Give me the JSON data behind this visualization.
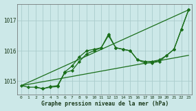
{
  "bg_color": "#cce8e8",
  "grid_color": "#aacccc",
  "line_color": "#1a6e1a",
  "marker_color": "#1a6e1a",
  "xlabel": "Graphe pression niveau de la mer (hPa)",
  "ylabel_ticks": [
    1015,
    1016,
    1017
  ],
  "xlim": [
    -0.5,
    23.5
  ],
  "ylim": [
    1014.55,
    1017.55
  ],
  "xticks": [
    0,
    1,
    2,
    3,
    4,
    5,
    6,
    7,
    8,
    9,
    10,
    11,
    12,
    13,
    14,
    15,
    16,
    17,
    18,
    19,
    20,
    21,
    22,
    23
  ],
  "series_diag1": {
    "x": [
      0,
      23
    ],
    "y": [
      1014.85,
      1017.35
    ]
  },
  "series_diag2": {
    "x": [
      0,
      23
    ],
    "y": [
      1014.85,
      1015.85
    ]
  },
  "series_main": {
    "x": [
      0,
      1,
      2,
      3,
      4,
      5,
      6,
      7,
      8,
      9,
      10,
      11,
      12,
      13,
      14,
      15,
      16,
      17,
      18,
      19,
      20,
      21,
      22,
      23
    ],
    "y": [
      1014.85,
      1014.8,
      1014.8,
      1014.75,
      1014.82,
      1014.85,
      1015.3,
      1015.5,
      1015.8,
      1016.0,
      1016.05,
      1016.1,
      1016.55,
      1016.1,
      1016.05,
      1016.0,
      1015.7,
      1015.65,
      1015.65,
      1015.7,
      1015.85,
      1016.05,
      1016.7,
      1017.35
    ]
  },
  "series_partial": {
    "x": [
      2,
      3,
      4,
      5,
      6,
      7,
      8,
      9,
      10,
      11,
      12,
      13,
      14,
      15,
      16,
      17,
      18,
      19,
      20,
      21,
      22,
      23
    ],
    "y": [
      1014.8,
      1014.75,
      1014.8,
      1014.82,
      1015.28,
      1015.35,
      1015.65,
      1015.9,
      1016.0,
      1016.1,
      1016.5,
      1016.1,
      1016.05,
      1016.0,
      1015.7,
      1015.6,
      1015.6,
      1015.65,
      1015.85,
      1016.05,
      1016.7,
      1017.35
    ]
  }
}
